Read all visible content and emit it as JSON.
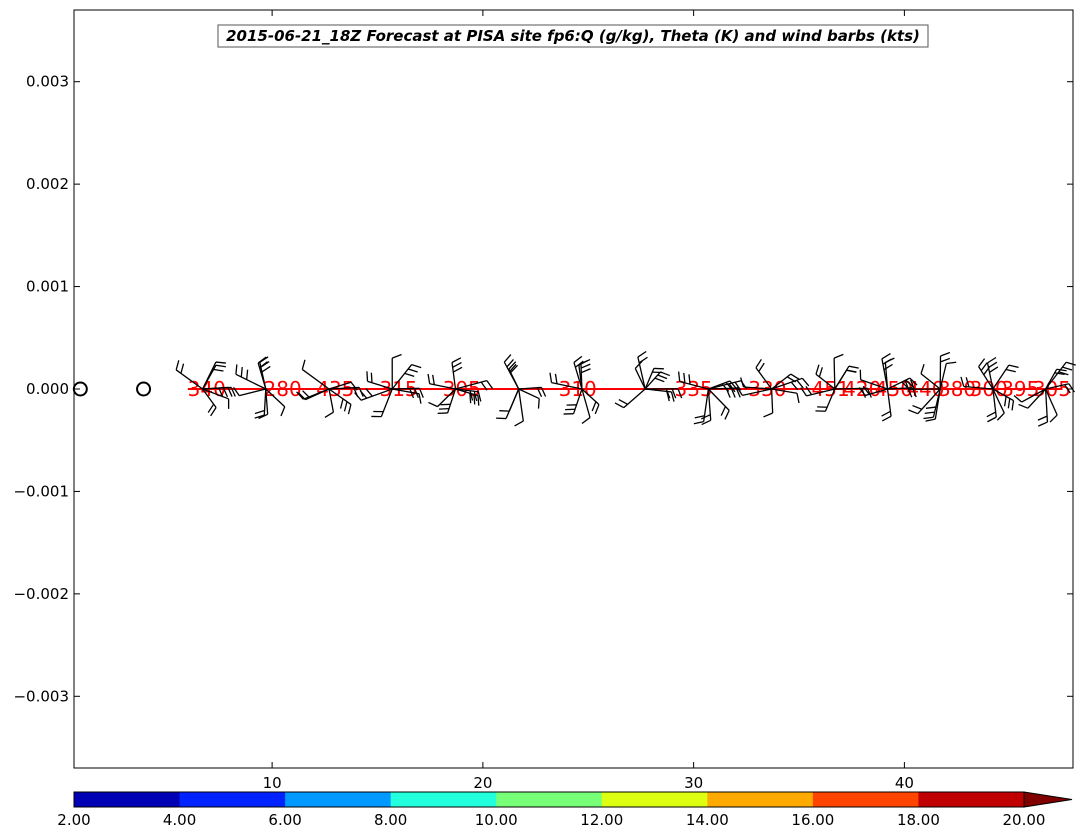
{
  "chart_data": {
    "type": "scatter",
    "title": "2015-06-21_18Z Forecast at PISA site fp6:Q (g/kg), Theta (K) and wind barbs (kts)",
    "ylim": [
      -0.0037,
      0.0037
    ],
    "xlim": [
      0.6,
      48.0
    ],
    "y_ticks": [
      {
        "value": 0.003,
        "label": "0.003"
      },
      {
        "value": 0.002,
        "label": "0.002"
      },
      {
        "value": 0.001,
        "label": "0.001"
      },
      {
        "value": 0.0,
        "label": "0.000"
      },
      {
        "value": -0.001,
        "label": "−0.001"
      },
      {
        "value": -0.002,
        "label": "−0.002"
      },
      {
        "value": -0.003,
        "label": "−0.003"
      }
    ],
    "x_ticks": [
      {
        "value": 10,
        "label": "10"
      },
      {
        "value": 20,
        "label": "20"
      },
      {
        "value": 30,
        "label": "30"
      },
      {
        "value": 40,
        "label": "40"
      }
    ],
    "calm_circles": [
      0.9,
      3.9
    ],
    "theta_line": {
      "x_start": 6.0,
      "x_end": 47.5,
      "y": 0.0,
      "color": "#ff0000"
    },
    "theta_labels": [
      {
        "x": 6.9,
        "text": "340"
      },
      {
        "x": 10.5,
        "text": "280"
      },
      {
        "x": 13.0,
        "text": "435"
      },
      {
        "x": 16.0,
        "text": "315"
      },
      {
        "x": 19.0,
        "text": "305"
      },
      {
        "x": 24.5,
        "text": "310"
      },
      {
        "x": 30.0,
        "text": "335"
      },
      {
        "x": 33.5,
        "text": "330"
      },
      {
        "x": 36.5,
        "text": "451"
      },
      {
        "x": 38.0,
        "text": "420"
      },
      {
        "x": 39.5,
        "text": "450"
      },
      {
        "x": 41.0,
        "text": "440"
      },
      {
        "x": 42.5,
        "text": "380"
      },
      {
        "x": 44.0,
        "text": "300"
      },
      {
        "x": 45.5,
        "text": "395"
      },
      {
        "x": 47.0,
        "text": "305"
      }
    ],
    "wind_barb_clusters": [
      6.7,
      9.7,
      12.7,
      15.7,
      18.7,
      21.7,
      24.7,
      27.7,
      30.7,
      33.7,
      36.7,
      39.2,
      41.7,
      44.2,
      46.7
    ],
    "colorbar": {
      "ticks": [
        "2.00",
        "4.00",
        "6.00",
        "8.00",
        "10.00",
        "12.00",
        "14.00",
        "16.00",
        "18.00",
        "20.00"
      ],
      "colors": [
        "#0000b4",
        "#0022ff",
        "#0099ff",
        "#22ffdd",
        "#77ff77",
        "#ddff11",
        "#ffaa00",
        "#ff4400",
        "#c00000"
      ],
      "extend_color": "#800000"
    }
  }
}
